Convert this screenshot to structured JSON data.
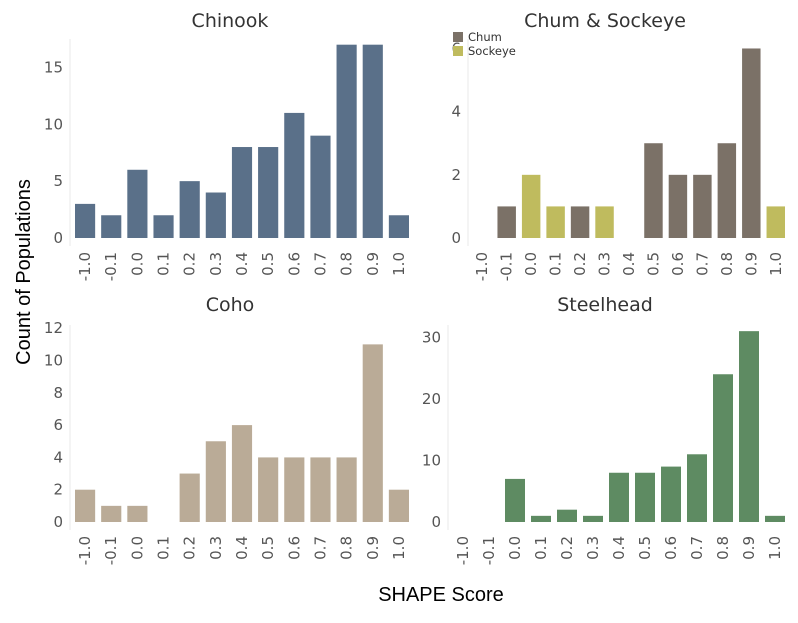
{
  "figure": {
    "xlabel": "SHAPE Score",
    "ylabel": "Count of Populations"
  },
  "chart_data": [
    {
      "type": "bar",
      "title": "Chinook",
      "categories": [
        "-1.0",
        "-0.1",
        "0.0",
        "0.1",
        "0.2",
        "0.3",
        "0.4",
        "0.5",
        "0.6",
        "0.7",
        "0.8",
        "0.9",
        "1.0"
      ],
      "series": [
        {
          "values": [
            3,
            2,
            6,
            2,
            5,
            4,
            8,
            8,
            11,
            9,
            17,
            17,
            2
          ],
          "color": "#5a7089"
        }
      ],
      "yticks": [
        0,
        5,
        10,
        15
      ],
      "ylim": [
        0,
        17.5
      ]
    },
    {
      "type": "bar",
      "title": "Chum & Sockeye",
      "categories": [
        "-1.0",
        "-0.1",
        "0.0",
        "0.1",
        "0.2",
        "0.3",
        "0.4",
        "0.5",
        "0.6",
        "0.7",
        "0.8",
        "0.9",
        "1.0"
      ],
      "series": [
        {
          "name": "Chum",
          "values": [
            0,
            1,
            0,
            0,
            1,
            0,
            0,
            3,
            2,
            2,
            3,
            6,
            0
          ],
          "color": "#7b7167"
        },
        {
          "name": "Sockeye",
          "values": [
            0,
            0,
            2,
            1,
            0,
            1,
            0,
            0,
            0,
            0,
            0,
            0,
            1
          ],
          "color": "#bfbb5e"
        }
      ],
      "yticks": [
        0,
        2,
        4,
        6
      ],
      "ylim": [
        0,
        6.3
      ],
      "legend": "top-left"
    },
    {
      "type": "bar",
      "title": "Coho",
      "categories": [
        "-1.0",
        "-0.1",
        "0.0",
        "0.1",
        "0.2",
        "0.3",
        "0.4",
        "0.5",
        "0.6",
        "0.7",
        "0.8",
        "0.9",
        "1.0"
      ],
      "series": [
        {
          "values": [
            2,
            1,
            1,
            0,
            3,
            5,
            6,
            4,
            4,
            4,
            4,
            11,
            2
          ],
          "color": "#baab97"
        }
      ],
      "yticks": [
        0,
        2,
        4,
        6,
        8,
        10,
        12
      ],
      "ylim": [
        0,
        12.2
      ]
    },
    {
      "type": "bar",
      "title": "Steelhead",
      "categories": [
        "-1.0",
        "-0.1",
        "0.0",
        "0.1",
        "0.2",
        "0.3",
        "0.4",
        "0.5",
        "0.6",
        "0.7",
        "0.8",
        "0.9",
        "1.0"
      ],
      "series": [
        {
          "values": [
            0,
            0,
            7,
            1,
            2,
            1,
            8,
            8,
            9,
            11,
            24,
            31,
            1
          ],
          "color": "#5e8b62"
        }
      ],
      "yticks": [
        0,
        10,
        20,
        30
      ],
      "ylim": [
        0,
        32
      ]
    }
  ]
}
